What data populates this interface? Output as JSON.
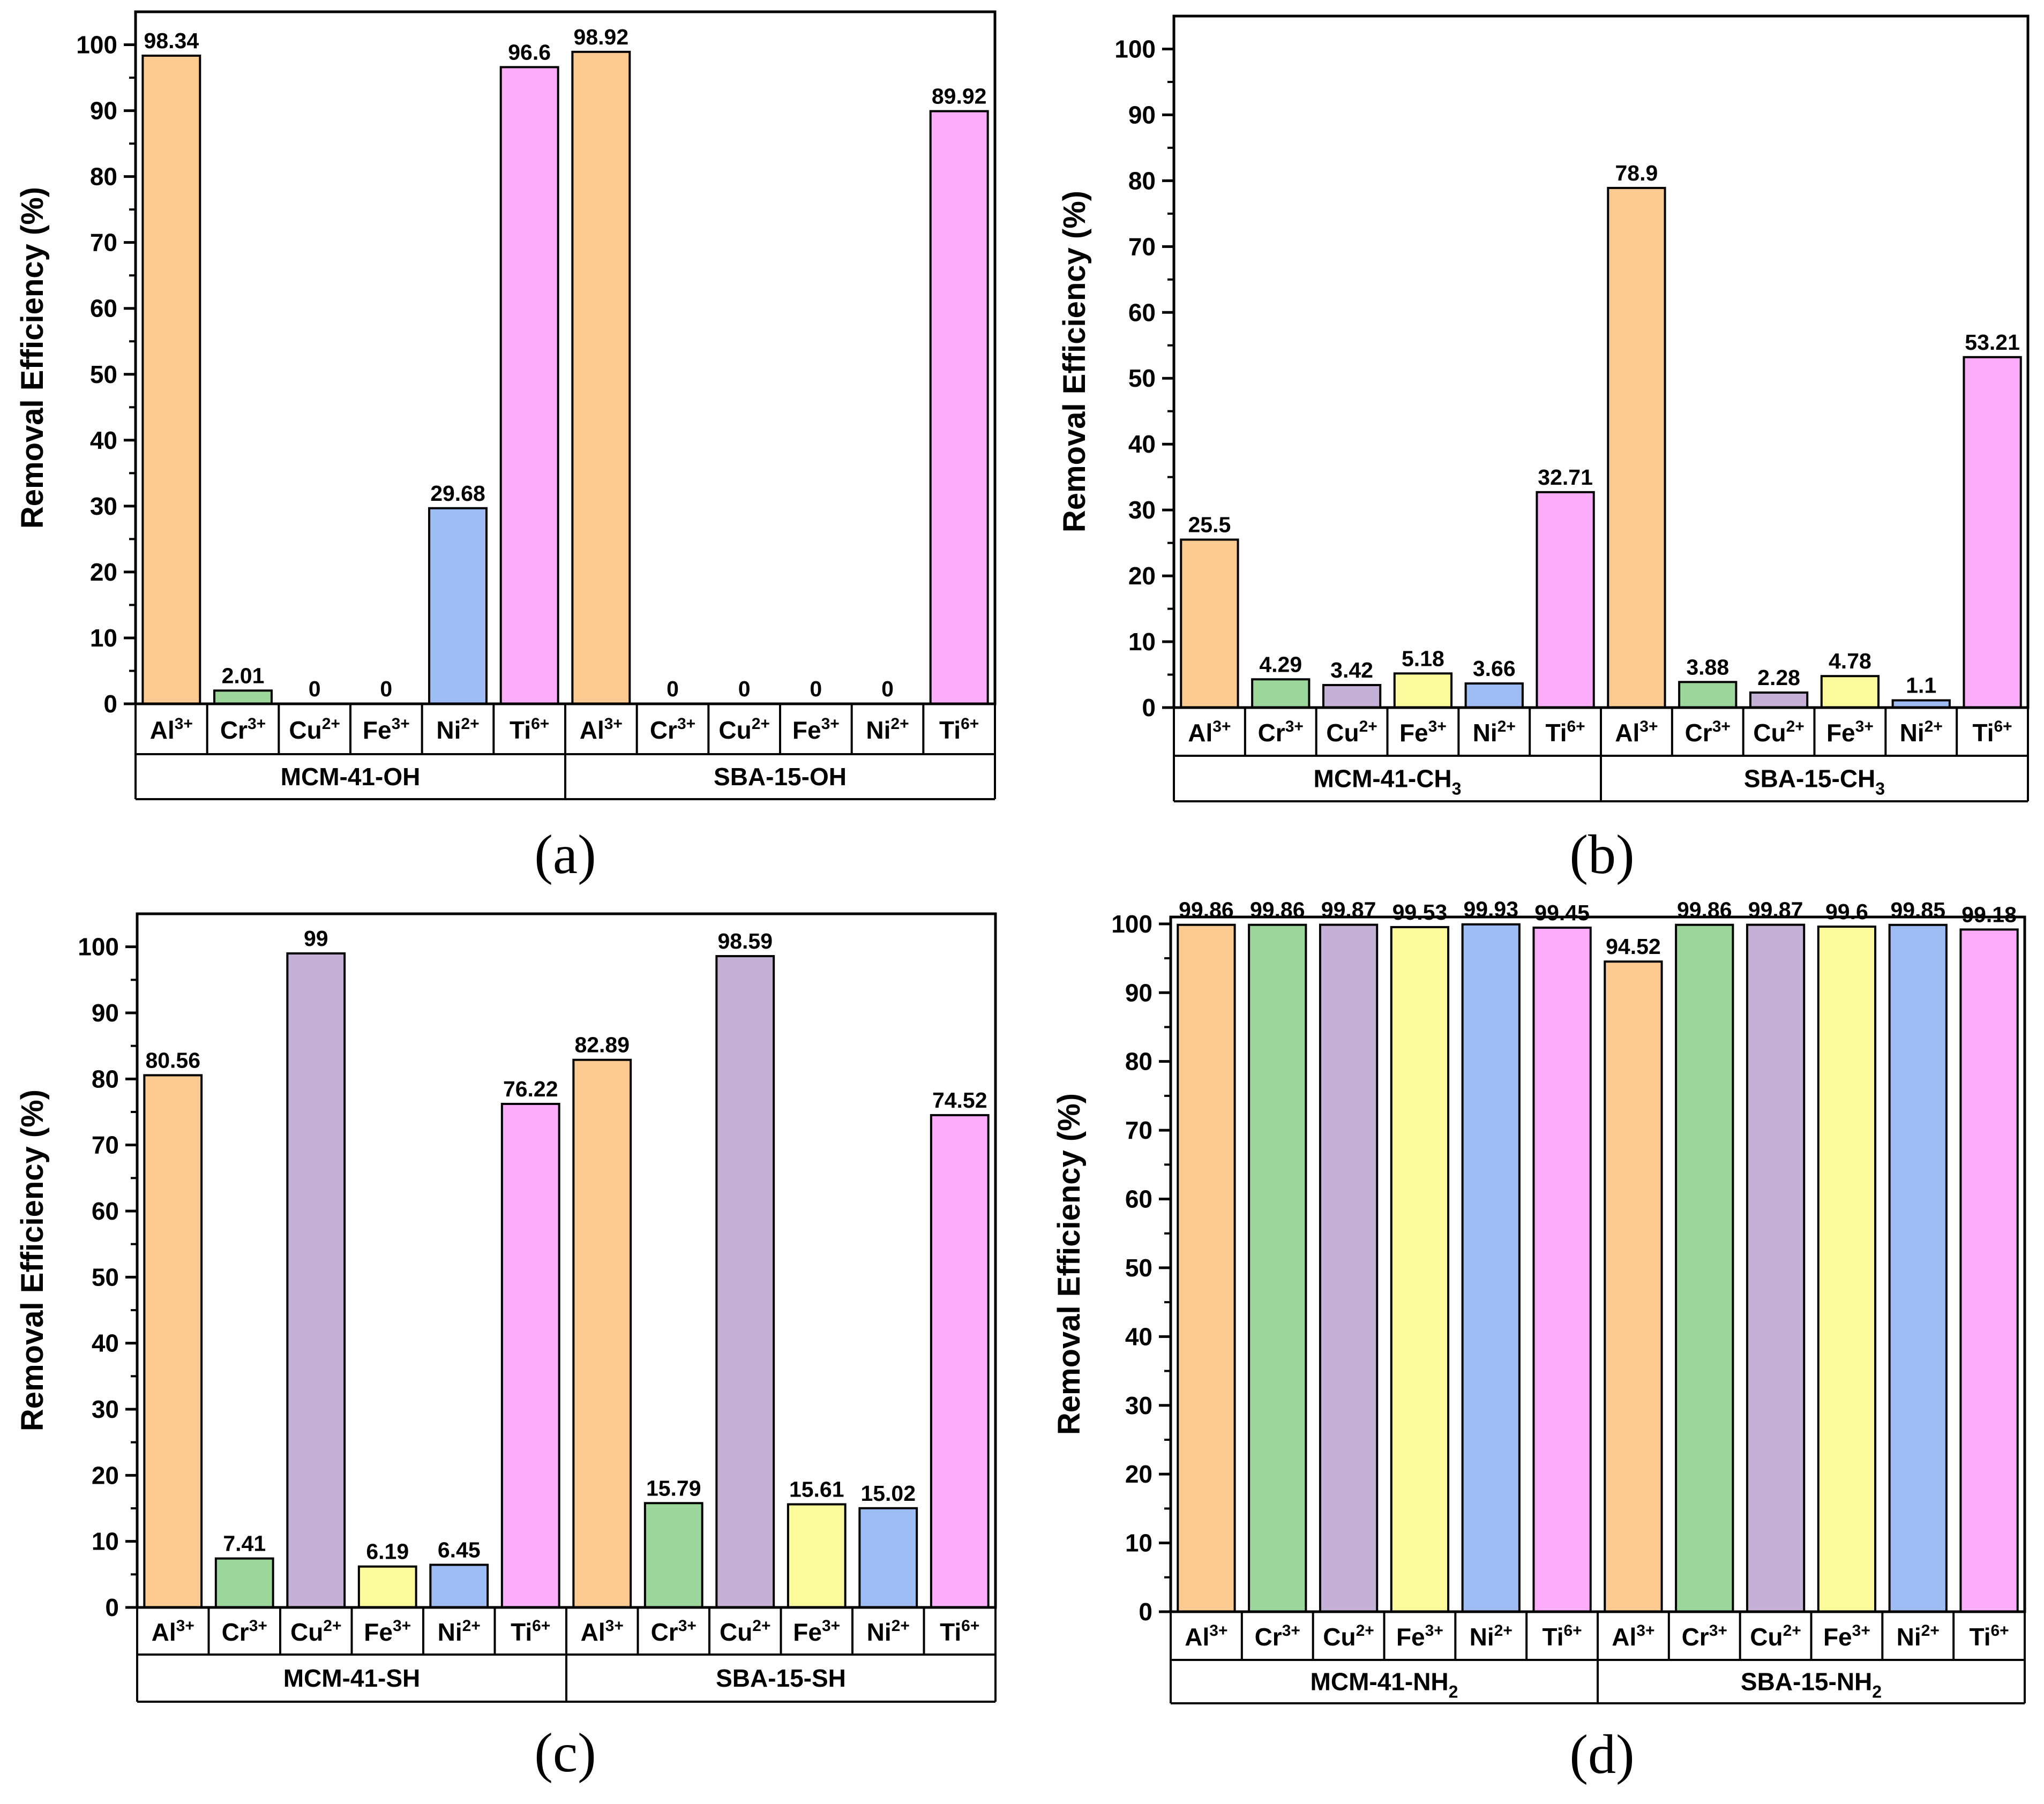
{
  "chart_data": [
    {
      "type": "bar",
      "panel_label": "(a)",
      "ylabel": "Removal Efficiency (%)",
      "ylim": [
        0,
        105
      ],
      "yticks": [
        0,
        10,
        20,
        30,
        40,
        50,
        60,
        70,
        80,
        90,
        100
      ],
      "categories": [
        {
          "base": "Al",
          "sup": "3+"
        },
        {
          "base": "Cr",
          "sup": "3+"
        },
        {
          "base": "Cu",
          "sup": "2+"
        },
        {
          "base": "Fe",
          "sup": "3+"
        },
        {
          "base": "Ni",
          "sup": "2+"
        },
        {
          "base": "Ti",
          "sup": "6+"
        }
      ],
      "groups": [
        {
          "label_base": "MCM-41-OH",
          "label_sub": "",
          "values": [
            98.34,
            2.01,
            0,
            0,
            29.68,
            96.6
          ]
        },
        {
          "label_base": "SBA-15-OH",
          "label_sub": "",
          "values": [
            98.92,
            0,
            0,
            0,
            0,
            89.92
          ]
        }
      ]
    },
    {
      "type": "bar",
      "panel_label": "(b)",
      "ylabel": "Removal Efficiency (%)",
      "ylim": [
        0,
        105
      ],
      "yticks": [
        0,
        10,
        20,
        30,
        40,
        50,
        60,
        70,
        80,
        90,
        100
      ],
      "categories": [
        {
          "base": "Al",
          "sup": "3+"
        },
        {
          "base": "Cr",
          "sup": "3+"
        },
        {
          "base": "Cu",
          "sup": "2+"
        },
        {
          "base": "Fe",
          "sup": "3+"
        },
        {
          "base": "Ni",
          "sup": "2+"
        },
        {
          "base": "Ti",
          "sup": "6+"
        }
      ],
      "groups": [
        {
          "label_base": "MCM-41-CH",
          "label_sub": "3",
          "values": [
            25.5,
            4.29,
            3.42,
            5.18,
            3.66,
            32.71
          ]
        },
        {
          "label_base": "SBA-15-CH",
          "label_sub": "3",
          "values": [
            78.9,
            3.88,
            2.28,
            4.78,
            1.1,
            53.21
          ]
        }
      ]
    },
    {
      "type": "bar",
      "panel_label": "(c)",
      "ylabel": "Removal Efficiency (%)",
      "ylim": [
        0,
        105
      ],
      "yticks": [
        0,
        10,
        20,
        30,
        40,
        50,
        60,
        70,
        80,
        90,
        100
      ],
      "categories": [
        {
          "base": "Al",
          "sup": "3+"
        },
        {
          "base": "Cr",
          "sup": "3+"
        },
        {
          "base": "Cu",
          "sup": "2+"
        },
        {
          "base": "Fe",
          "sup": "3+"
        },
        {
          "base": "Ni",
          "sup": "2+"
        },
        {
          "base": "Ti",
          "sup": "6+"
        }
      ],
      "groups": [
        {
          "label_base": "MCM-41-SH",
          "label_sub": "",
          "values": [
            80.56,
            7.41,
            99,
            6.19,
            6.45,
            76.22
          ]
        },
        {
          "label_base": "SBA-15-SH",
          "label_sub": "",
          "values": [
            82.89,
            15.79,
            98.59,
            15.61,
            15.02,
            74.52
          ]
        }
      ]
    },
    {
      "type": "bar",
      "panel_label": "(d)",
      "ylabel": "Removal Efficiency (%)",
      "ylim": [
        0,
        101
      ],
      "yticks": [
        0,
        10,
        20,
        30,
        40,
        50,
        60,
        70,
        80,
        90,
        100
      ],
      "categories": [
        {
          "base": "Al",
          "sup": "3+"
        },
        {
          "base": "Cr",
          "sup": "3+"
        },
        {
          "base": "Cu",
          "sup": "2+"
        },
        {
          "base": "Fe",
          "sup": "3+"
        },
        {
          "base": "Ni",
          "sup": "2+"
        },
        {
          "base": "Ti",
          "sup": "6+"
        }
      ],
      "groups": [
        {
          "label_base": "MCM-41-NH",
          "label_sub": "2",
          "values": [
            99.86,
            99.86,
            99.87,
            99.53,
            99.93,
            99.45
          ]
        },
        {
          "label_base": "SBA-15-NH",
          "label_sub": "2",
          "values": [
            94.52,
            99.86,
            99.87,
            99.6,
            99.85,
            99.18
          ]
        }
      ]
    }
  ],
  "colors": {
    "Al": "#fdcb91",
    "Cr": "#9dd69a",
    "Cu": "#c5b1d6",
    "Fe": "#fbfb9c",
    "Ni": "#9dbdf4",
    "Ti": "#fcadfa",
    "axis": "#000000"
  }
}
